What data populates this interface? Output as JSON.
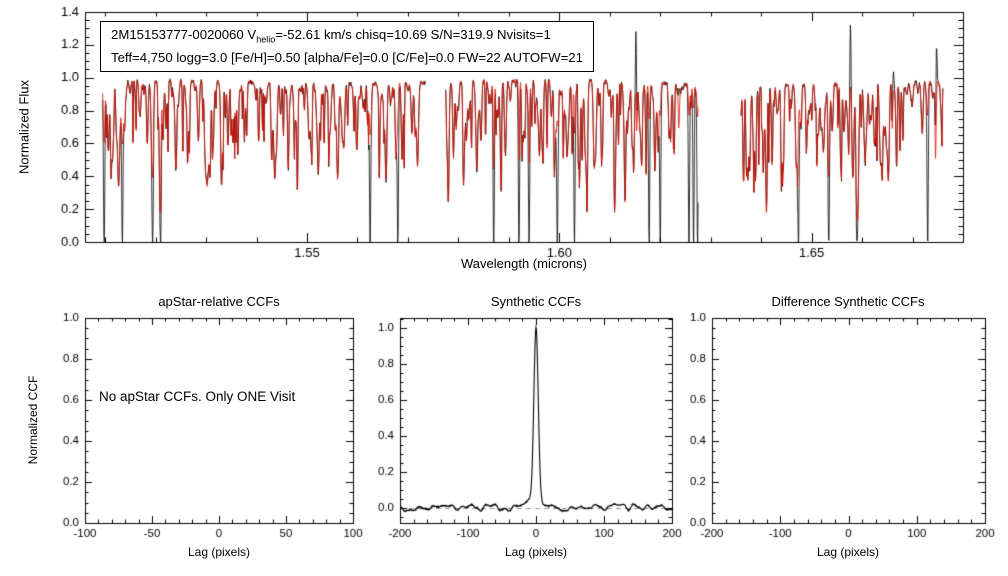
{
  "header": {
    "line1_pre": "2M15153777-0020060  V",
    "line1_sub": "helio",
    "line1_post": "=-52.61 km/s  chisq=10.69  S/N=319.9  Nvisits=1",
    "line2": "Teff=4,750 logg=3.0 [Fe/H]=0.50 [alpha/Fe]=0.0 [C/Fe]=0.0 FW=22 AUTOFW=21"
  },
  "colors": {
    "observed": "#000000",
    "synthetic": "#dd1100",
    "axis": "#000000",
    "zero_dash": "#999999",
    "background": "#ffffff"
  },
  "chart_data": [
    {
      "type": "line",
      "name": "apogee-spectrum",
      "title": "",
      "xlabel": "Wavelength (microns)",
      "ylabel": "Normalized Flux",
      "xlim": [
        1.506,
        1.68
      ],
      "ylim": [
        0.0,
        1.4
      ],
      "xticks": [
        1.55,
        1.6,
        1.65
      ],
      "xtick_labels": [
        "1.55",
        "1.60",
        "1.65"
      ],
      "yticks": [
        0.0,
        0.2,
        0.4,
        0.6,
        0.8,
        1.0,
        1.2,
        1.4
      ],
      "ytick_labels": [
        "0.0",
        "0.2",
        "0.4",
        "0.6",
        "0.8",
        "1.0",
        "1.2",
        "1.4"
      ],
      "x_minor_step": 0.01,
      "y_minor_step": 0.05,
      "series": [
        {
          "name": "observed",
          "color": "#000000"
        },
        {
          "name": "synthetic",
          "color": "#dd1100"
        }
      ],
      "segments": [
        [
          1.5095,
          1.5735
        ],
        [
          1.5775,
          1.6275
        ],
        [
          1.636,
          1.676
        ]
      ],
      "continuum": 0.965,
      "noise": 0.014,
      "absorption_line_count": 560,
      "deep_lines": [
        1.5098,
        1.5134,
        1.5194,
        1.521,
        1.5625,
        1.568,
        1.587,
        1.592,
        1.594,
        1.5996,
        1.603,
        1.6178,
        1.62,
        1.6257,
        1.6266,
        1.6274,
        1.6474,
        1.6534,
        1.659,
        1.673
      ],
      "medium_lines": [
        1.578,
        1.581,
        1.6055,
        1.613,
        1.6365,
        1.664
      ],
      "emission_spikes": [
        {
          "x": 1.6152,
          "h": 1.33
        },
        {
          "x": 1.6237,
          "h": 1.15
        },
        {
          "x": 1.6577,
          "h": 1.35
        },
        {
          "x": 1.6662,
          "h": 1.08
        },
        {
          "x": 1.6747,
          "h": 1.33
        }
      ],
      "seed": 12345
    },
    {
      "type": "line",
      "name": "apstar-relative-ccfs",
      "title": "apStar-relative CCFs",
      "xlabel": "Lag (pixels)",
      "ylabel": "Normalized CCF",
      "xlim": [
        -100,
        100
      ],
      "ylim": [
        0.0,
        1.0
      ],
      "xticks": [
        -100,
        -50,
        0,
        50,
        100
      ],
      "xtick_labels": [
        "-100",
        "-50",
        "0",
        "50",
        "100"
      ],
      "yticks": [
        0.0,
        0.2,
        0.4,
        0.6,
        0.8,
        1.0
      ],
      "ytick_labels": [
        "0.0",
        "0.2",
        "0.4",
        "0.6",
        "0.8",
        "1.0"
      ],
      "x_minor_step": 10,
      "y_minor_step": 0.05,
      "annotation": "No apStar CCFs.  Only ONE Visit",
      "series": []
    },
    {
      "type": "line",
      "name": "synthetic-ccfs",
      "title": "Synthetic CCFs",
      "xlabel": "Lag (pixels)",
      "ylabel": "",
      "xlim": [
        -200,
        200
      ],
      "ylim": [
        -0.085,
        1.055
      ],
      "xticks": [
        -200,
        -100,
        0,
        100,
        200
      ],
      "xtick_labels": [
        "-200",
        "-100",
        "0",
        "100",
        "200"
      ],
      "yticks": [
        0.0,
        0.2,
        0.4,
        0.6,
        0.8,
        1.0
      ],
      "ytick_labels": [
        "0.0",
        "0.2",
        "0.4",
        "0.6",
        "0.8",
        "1.0"
      ],
      "x_minor_step": 20,
      "y_minor_step": 0.05,
      "peak": {
        "center": 0,
        "height": 0.96,
        "sigma": 3.2,
        "base_height": 0.05,
        "base_sigma": 12
      },
      "noise_amp": 0.02,
      "zero_line": 0.0,
      "seed": 777,
      "series": [
        {
          "name": "synthetic-ccf",
          "color": "#000000"
        }
      ]
    },
    {
      "type": "line",
      "name": "difference-synthetic-ccfs",
      "title": "Difference Synthetic CCFs",
      "xlabel": "Lag (pixels)",
      "ylabel": "",
      "xlim": [
        -200,
        200
      ],
      "ylim": [
        0.0,
        1.0
      ],
      "xticks": [
        -200,
        -100,
        0,
        100,
        200
      ],
      "xtick_labels": [
        "-200",
        "-100",
        "0",
        "100",
        "200"
      ],
      "yticks": [
        0.0,
        0.2,
        0.4,
        0.6,
        0.8,
        1.0
      ],
      "ytick_labels": [
        "0.0",
        "0.2",
        "0.4",
        "0.6",
        "0.8",
        "1.0"
      ],
      "x_minor_step": 20,
      "y_minor_step": 0.05,
      "series": []
    }
  ]
}
